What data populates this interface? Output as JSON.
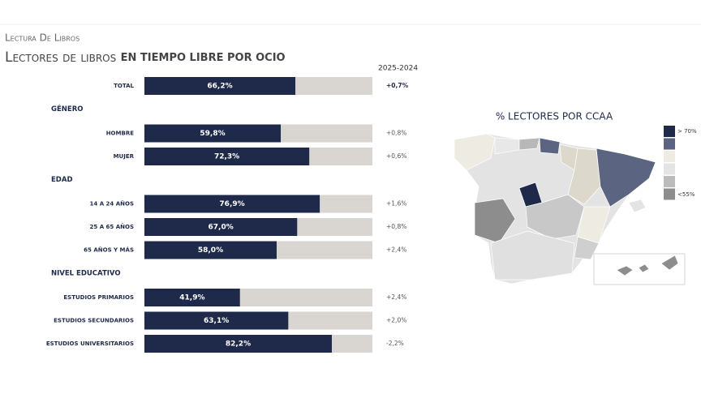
{
  "chart_data": {
    "type": "bar",
    "subtitle": "Lectura De Libros",
    "title_light": "Lectores de libros",
    "title_bold": "EN TIEMPO LIBRE POR OCIO",
    "change_header": "2025-2024",
    "xlim": [
      0,
      100
    ],
    "bar_color": "#1f2a4a",
    "track_color": "#d9d6d1",
    "groups": [
      {
        "categories": [
          "TOTAL"
        ],
        "values": [
          66.2
        ],
        "value_labels": [
          "66,2%"
        ],
        "changes": [
          "+0,7%"
        ]
      },
      {
        "name": "GÉNERO",
        "categories": [
          "HOMBRE",
          "MUJER"
        ],
        "values": [
          59.8,
          72.3
        ],
        "value_labels": [
          "59,8%",
          "72,3%"
        ],
        "changes": [
          "+0,8%",
          "+0,6%"
        ]
      },
      {
        "name": "EDAD",
        "categories": [
          "14 A 24 AÑOS",
          "25 A 65 AÑOS",
          "65 AÑOS Y MÁS"
        ],
        "values": [
          76.9,
          67.0,
          58.0
        ],
        "value_labels": [
          "76,9%",
          "67,0%",
          "58,0%"
        ],
        "changes": [
          "+1,6%",
          "+0,8%",
          "+2,4%"
        ]
      },
      {
        "name": "NIVEL EDUCATIVO",
        "categories": [
          "ESTUDIOS PRIMARIOS",
          "ESTUDIOS SECUNDARIOS",
          "ESTUDIOS UNIVERSITARIOS"
        ],
        "values": [
          41.9,
          63.1,
          82.2
        ],
        "value_labels": [
          "41,9%",
          "63,1%",
          "82,2%"
        ],
        "changes": [
          "+2,4%",
          "+2,0%",
          "-2,2%"
        ]
      }
    ],
    "map": {
      "title": "% LECTORES POR CCAA",
      "legend_high": "> 70%",
      "legend_low": "<55%",
      "legend_colors": [
        "#1f2a4a",
        "#5b6582",
        "#eeebe3",
        "#e4e4e4",
        "#bcbcbc",
        "#8d8d8d"
      ]
    }
  }
}
